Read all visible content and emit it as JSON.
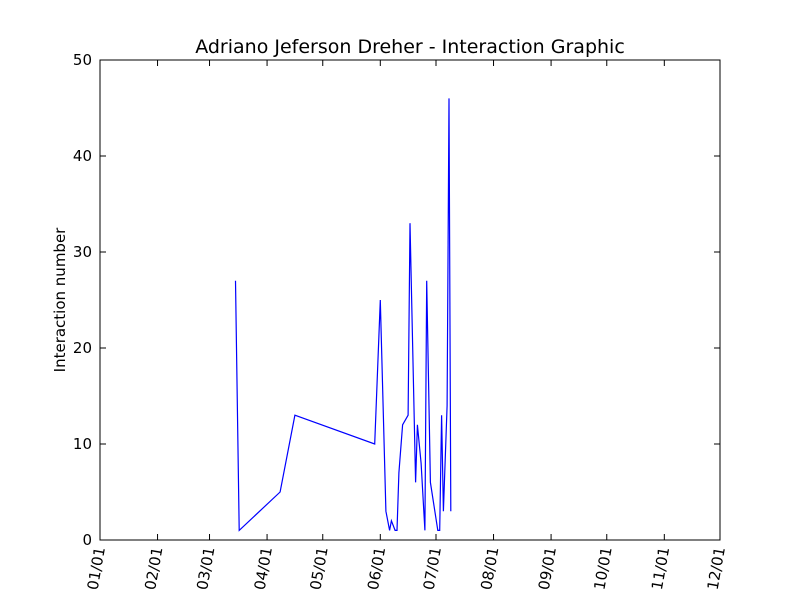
{
  "chart_data": {
    "type": "line",
    "title": "Adriano Jeferson Dreher - Interaction Graphic",
    "xlabel": "",
    "ylabel": "Interaction number",
    "ylim": [
      0,
      50
    ],
    "yticks": [
      0,
      10,
      20,
      30,
      40,
      50
    ],
    "xlim": [
      "2017-01-01",
      "2017-12-01"
    ],
    "xticks": [
      {
        "date": "2017-01-01",
        "label": "01/01"
      },
      {
        "date": "2017-02-01",
        "label": "02/01"
      },
      {
        "date": "2017-03-01",
        "label": "03/01"
      },
      {
        "date": "2017-04-01",
        "label": "04/01"
      },
      {
        "date": "2017-05-01",
        "label": "05/01"
      },
      {
        "date": "2017-06-01",
        "label": "06/01"
      },
      {
        "date": "2017-07-01",
        "label": "07/01"
      },
      {
        "date": "2017-08-01",
        "label": "08/01"
      },
      {
        "date": "2017-09-01",
        "label": "09/01"
      },
      {
        "date": "2017-10-01",
        "label": "10/01"
      },
      {
        "date": "2017-11-01",
        "label": "11/01"
      },
      {
        "date": "2017-12-01",
        "label": "12/01"
      }
    ],
    "grid": false,
    "line_color": "#0000ff",
    "series": [
      {
        "points": [
          {
            "x": "2017-03-15",
            "y": 27
          },
          {
            "x": "2017-03-17",
            "y": 1
          },
          {
            "x": "2017-04-08",
            "y": 5
          },
          {
            "x": "2017-04-16",
            "y": 13
          },
          {
            "x": "2017-05-29",
            "y": 10
          },
          {
            "x": "2017-06-01",
            "y": 25
          },
          {
            "x": "2017-06-04",
            "y": 3
          },
          {
            "x": "2017-06-06",
            "y": 1
          },
          {
            "x": "2017-06-07",
            "y": 2
          },
          {
            "x": "2017-06-09",
            "y": 1
          },
          {
            "x": "2017-06-10",
            "y": 1
          },
          {
            "x": "2017-06-11",
            "y": 7
          },
          {
            "x": "2017-06-13",
            "y": 12
          },
          {
            "x": "2017-06-16",
            "y": 13
          },
          {
            "x": "2017-06-17",
            "y": 33
          },
          {
            "x": "2017-06-20",
            "y": 6
          },
          {
            "x": "2017-06-21",
            "y": 12
          },
          {
            "x": "2017-06-23",
            "y": 8
          },
          {
            "x": "2017-06-25",
            "y": 1
          },
          {
            "x": "2017-06-26",
            "y": 27
          },
          {
            "x": "2017-06-28",
            "y": 6
          },
          {
            "x": "2017-07-02",
            "y": 1
          },
          {
            "x": "2017-07-03",
            "y": 1
          },
          {
            "x": "2017-07-04",
            "y": 13
          },
          {
            "x": "2017-07-05",
            "y": 3
          },
          {
            "x": "2017-07-07",
            "y": 14
          },
          {
            "x": "2017-07-08",
            "y": 46
          },
          {
            "x": "2017-07-09",
            "y": 3
          }
        ]
      }
    ]
  }
}
